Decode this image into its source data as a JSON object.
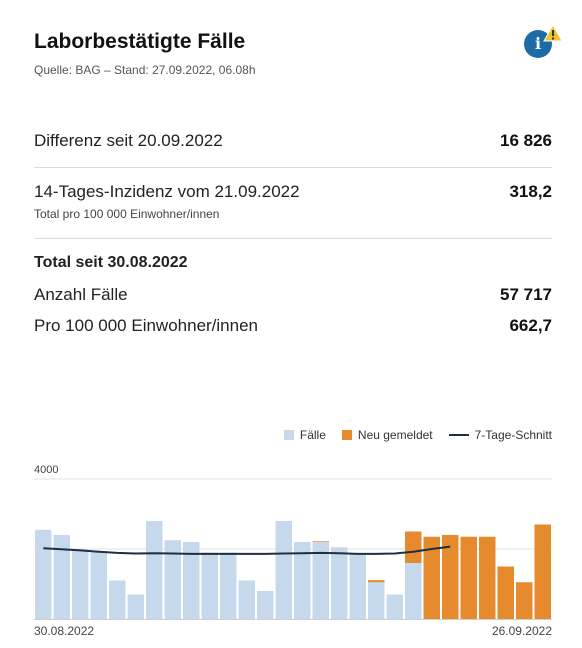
{
  "header": {
    "title": "Laborbestätigte Fälle",
    "source": "Quelle: BAG – Stand: 27.09.2022, 06.08h",
    "info_icon": "i"
  },
  "stats": {
    "diff_label": "Differenz seit 20.09.2022",
    "diff_value": "16 826",
    "incidence_label": "14-Tages-Inzidenz vom 21.09.2022",
    "incidence_value": "318,2",
    "incidence_sub": "Total pro 100 000 Einwohner/innen",
    "total_heading": "Total seit 30.08.2022",
    "cases_label": "Anzahl Fälle",
    "cases_value": "57 717",
    "per100k_label": "Pro 100 000 Einwohner/innen",
    "per100k_value": "662,7"
  },
  "legend": {
    "cases": "Fälle",
    "new": "Neu gemeldet",
    "avg": "7-Tage-Schnitt"
  },
  "colors": {
    "cases": "#c6d9ec",
    "new": "#e68a2e",
    "avg": "#1f2f3f",
    "info": "#1c6aa6",
    "warning": "#f2c12e"
  },
  "chart_data": {
    "type": "bar",
    "x": [
      "30.08.2022",
      "31.08.2022",
      "01.09.2022",
      "02.09.2022",
      "03.09.2022",
      "04.09.2022",
      "05.09.2022",
      "06.09.2022",
      "07.09.2022",
      "08.09.2022",
      "09.09.2022",
      "10.09.2022",
      "11.09.2022",
      "12.09.2022",
      "13.09.2022",
      "14.09.2022",
      "15.09.2022",
      "16.09.2022",
      "17.09.2022",
      "18.09.2022",
      "19.09.2022",
      "20.09.2022",
      "21.09.2022",
      "22.09.2022",
      "23.09.2022",
      "24.09.2022",
      "25.09.2022",
      "26.09.2022"
    ],
    "series": [
      {
        "name": "Fälle",
        "values": [
          2550,
          2400,
          2000,
          1900,
          1100,
          700,
          2800,
          2250,
          2200,
          1900,
          1900,
          1100,
          800,
          2800,
          2200,
          2200,
          2050,
          1850,
          1050,
          700,
          1600,
          0,
          0,
          0,
          0,
          0,
          0,
          0
        ]
      },
      {
        "name": "Neu gemeldet",
        "values": [
          0,
          0,
          0,
          0,
          0,
          0,
          0,
          0,
          0,
          0,
          0,
          0,
          0,
          0,
          0,
          20,
          0,
          0,
          60,
          0,
          900,
          2350,
          2400,
          2350,
          2350,
          1500,
          1050,
          2700
        ]
      },
      {
        "name": "7-Tage-Schnitt",
        "values": [
          2020,
          1990,
          1960,
          1920,
          1890,
          1870,
          1880,
          1870,
          1860,
          1860,
          1860,
          1860,
          1860,
          1870,
          1880,
          1890,
          1880,
          1860,
          1860,
          1870,
          1920,
          2000,
          2070,
          null,
          null,
          null,
          null,
          null
        ]
      }
    ],
    "ylim": [
      0,
      4000
    ],
    "yticks": [
      "4000"
    ],
    "x_start_label": "30.08.2022",
    "x_end_label": "26.09.2022"
  }
}
